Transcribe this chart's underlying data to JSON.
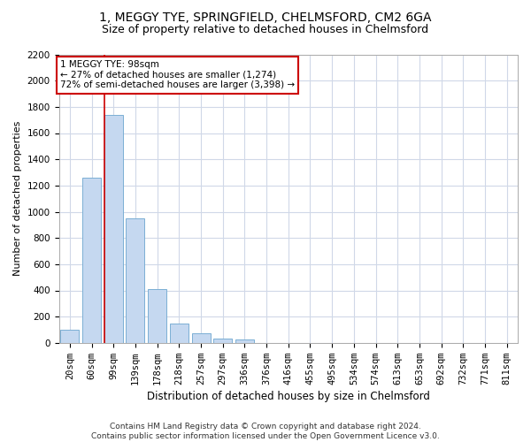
{
  "title1": "1, MEGGY TYE, SPRINGFIELD, CHELMSFORD, CM2 6GA",
  "title2": "Size of property relative to detached houses in Chelmsford",
  "xlabel": "Distribution of detached houses by size in Chelmsford",
  "ylabel": "Number of detached properties",
  "footnote": "Contains HM Land Registry data © Crown copyright and database right 2024.\nContains public sector information licensed under the Open Government Licence v3.0.",
  "categories": [
    "20sqm",
    "60sqm",
    "99sqm",
    "139sqm",
    "178sqm",
    "218sqm",
    "257sqm",
    "297sqm",
    "336sqm",
    "376sqm",
    "416sqm",
    "455sqm",
    "495sqm",
    "534sqm",
    "574sqm",
    "613sqm",
    "653sqm",
    "692sqm",
    "732sqm",
    "771sqm",
    "811sqm"
  ],
  "values": [
    100,
    1260,
    1740,
    950,
    410,
    150,
    70,
    35,
    25,
    0,
    0,
    0,
    0,
    0,
    0,
    0,
    0,
    0,
    0,
    0,
    0
  ],
  "bar_color": "#c5d8f0",
  "bar_edge_color": "#7bafd4",
  "vline_color": "#cc0000",
  "annotation_line1": "1 MEGGY TYE: 98sqm",
  "annotation_line2": "← 27% of detached houses are smaller (1,274)",
  "annotation_line3": "72% of semi-detached houses are larger (3,398) →",
  "annotation_box_edge_color": "#cc0000",
  "ylim": [
    0,
    2200
  ],
  "yticks": [
    0,
    200,
    400,
    600,
    800,
    1000,
    1200,
    1400,
    1600,
    1800,
    2000,
    2200
  ],
  "bg_color": "#ffffff",
  "grid_color": "#d0d8e8",
  "title1_fontsize": 10,
  "title2_fontsize": 9,
  "xlabel_fontsize": 8.5,
  "ylabel_fontsize": 8,
  "tick_fontsize": 7.5,
  "annot_fontsize": 7.5,
  "footnote_fontsize": 6.5
}
